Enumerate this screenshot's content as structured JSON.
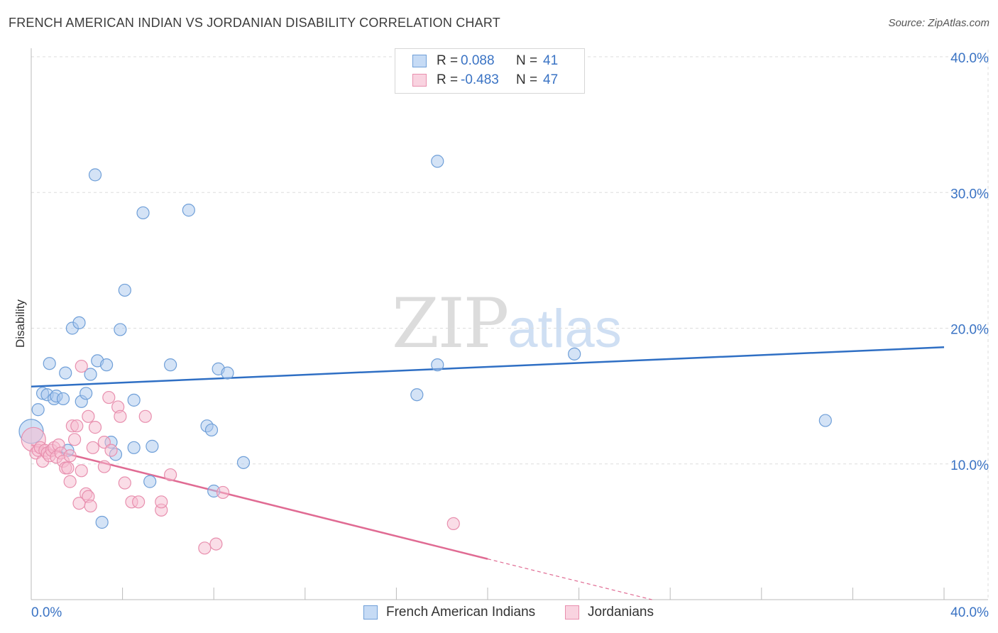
{
  "header": {
    "title": "FRENCH AMERICAN INDIAN VS JORDANIAN DISABILITY CORRELATION CHART",
    "source": "Source: ZipAtlas.com"
  },
  "watermark": {
    "zip": "ZIP",
    "atlas": "atlas"
  },
  "legend": {
    "rows": [
      {
        "r_label": "R =",
        "r_value": "0.088",
        "n_label": "N =",
        "n_value": "41"
      },
      {
        "r_label": "R =",
        "r_value": "-0.483",
        "n_label": "N =",
        "n_value": "47"
      }
    ]
  },
  "bottom_legend": [
    "French American Indians",
    "Jordanians"
  ],
  "colors": {
    "blue_fill": "#a9c8ee",
    "blue_stroke": "#6f9fd8",
    "blue_line": "#2f6fc4",
    "pink_fill": "#f5bcd0",
    "pink_stroke": "#e88fae",
    "pink_line": "#e06b93",
    "axis_label": "#3a73c4",
    "grid": "#dddddd"
  },
  "chart_data": {
    "type": "scatter",
    "title": "FRENCH AMERICAN INDIAN VS JORDANIAN DISABILITY CORRELATION CHART",
    "xlabel": "",
    "ylabel": "Disability",
    "xlim": [
      0,
      40
    ],
    "ylim": [
      0,
      40
    ],
    "x_tick_labels": [
      "0.0%",
      "40.0%"
    ],
    "y_ticks": [
      10,
      20,
      30,
      40
    ],
    "y_tick_labels": [
      "10.0%",
      "20.0%",
      "30.0%",
      "40.0%"
    ],
    "grid": true,
    "series": [
      {
        "name": "French American Indians",
        "r": 0.088,
        "n": 41,
        "trend": {
          "x": [
            0,
            40
          ],
          "y": [
            15.7,
            18.6
          ]
        },
        "points": [
          [
            0.0,
            12.4
          ],
          [
            0.3,
            14.0
          ],
          [
            0.5,
            15.2
          ],
          [
            0.7,
            15.1
          ],
          [
            0.8,
            17.4
          ],
          [
            1.0,
            14.8
          ],
          [
            1.1,
            15.0
          ],
          [
            1.4,
            14.8
          ],
          [
            1.5,
            16.7
          ],
          [
            1.6,
            11.0
          ],
          [
            1.8,
            20.0
          ],
          [
            2.1,
            20.4
          ],
          [
            2.2,
            14.6
          ],
          [
            2.4,
            15.2
          ],
          [
            2.6,
            16.6
          ],
          [
            2.8,
            31.3
          ],
          [
            2.9,
            17.6
          ],
          [
            3.1,
            5.7
          ],
          [
            3.3,
            17.3
          ],
          [
            3.5,
            11.6
          ],
          [
            3.7,
            10.7
          ],
          [
            3.9,
            19.9
          ],
          [
            4.1,
            22.8
          ],
          [
            4.5,
            14.7
          ],
          [
            4.5,
            11.2
          ],
          [
            4.9,
            28.5
          ],
          [
            5.2,
            8.7
          ],
          [
            5.3,
            11.3
          ],
          [
            6.1,
            17.3
          ],
          [
            6.9,
            28.7
          ],
          [
            7.7,
            12.8
          ],
          [
            7.9,
            12.5
          ],
          [
            8.0,
            8.0
          ],
          [
            8.2,
            17.0
          ],
          [
            8.6,
            16.7
          ],
          [
            9.3,
            10.1
          ],
          [
            16.9,
            15.1
          ],
          [
            17.8,
            17.3
          ],
          [
            17.8,
            32.3
          ],
          [
            23.8,
            18.1
          ],
          [
            34.8,
            13.2
          ]
        ]
      },
      {
        "name": "Jordanians",
        "r": -0.483,
        "n": 47,
        "trend": {
          "x": [
            0,
            20
          ],
          "y": [
            11.4,
            3.0
          ],
          "dashed_to": {
            "x": 27.2,
            "y": 0.0
          }
        },
        "points": [
          [
            0.1,
            11.8
          ],
          [
            0.2,
            10.8
          ],
          [
            0.3,
            11.0
          ],
          [
            0.4,
            11.2
          ],
          [
            0.5,
            10.2
          ],
          [
            0.6,
            11.0
          ],
          [
            0.7,
            10.8
          ],
          [
            0.8,
            10.6
          ],
          [
            0.9,
            11.0
          ],
          [
            1.0,
            11.2
          ],
          [
            1.1,
            10.5
          ],
          [
            1.2,
            11.4
          ],
          [
            1.3,
            10.8
          ],
          [
            1.4,
            10.2
          ],
          [
            1.5,
            9.7
          ],
          [
            1.6,
            9.7
          ],
          [
            1.7,
            10.6
          ],
          [
            1.7,
            8.7
          ],
          [
            1.8,
            12.8
          ],
          [
            1.9,
            11.8
          ],
          [
            2.0,
            12.8
          ],
          [
            2.1,
            7.1
          ],
          [
            2.2,
            9.5
          ],
          [
            2.2,
            17.2
          ],
          [
            2.4,
            7.8
          ],
          [
            2.5,
            7.6
          ],
          [
            2.5,
            13.5
          ],
          [
            2.6,
            6.9
          ],
          [
            2.7,
            11.2
          ],
          [
            2.8,
            12.7
          ],
          [
            3.2,
            11.6
          ],
          [
            3.2,
            9.8
          ],
          [
            3.4,
            14.9
          ],
          [
            3.5,
            11.0
          ],
          [
            3.8,
            14.2
          ],
          [
            3.9,
            13.5
          ],
          [
            4.1,
            8.6
          ],
          [
            4.4,
            7.2
          ],
          [
            4.7,
            7.2
          ],
          [
            5.0,
            13.5
          ],
          [
            5.7,
            6.6
          ],
          [
            5.7,
            7.2
          ],
          [
            6.1,
            9.2
          ],
          [
            7.6,
            3.8
          ],
          [
            8.1,
            4.1
          ],
          [
            8.4,
            7.9
          ],
          [
            18.5,
            5.6
          ]
        ]
      }
    ]
  }
}
